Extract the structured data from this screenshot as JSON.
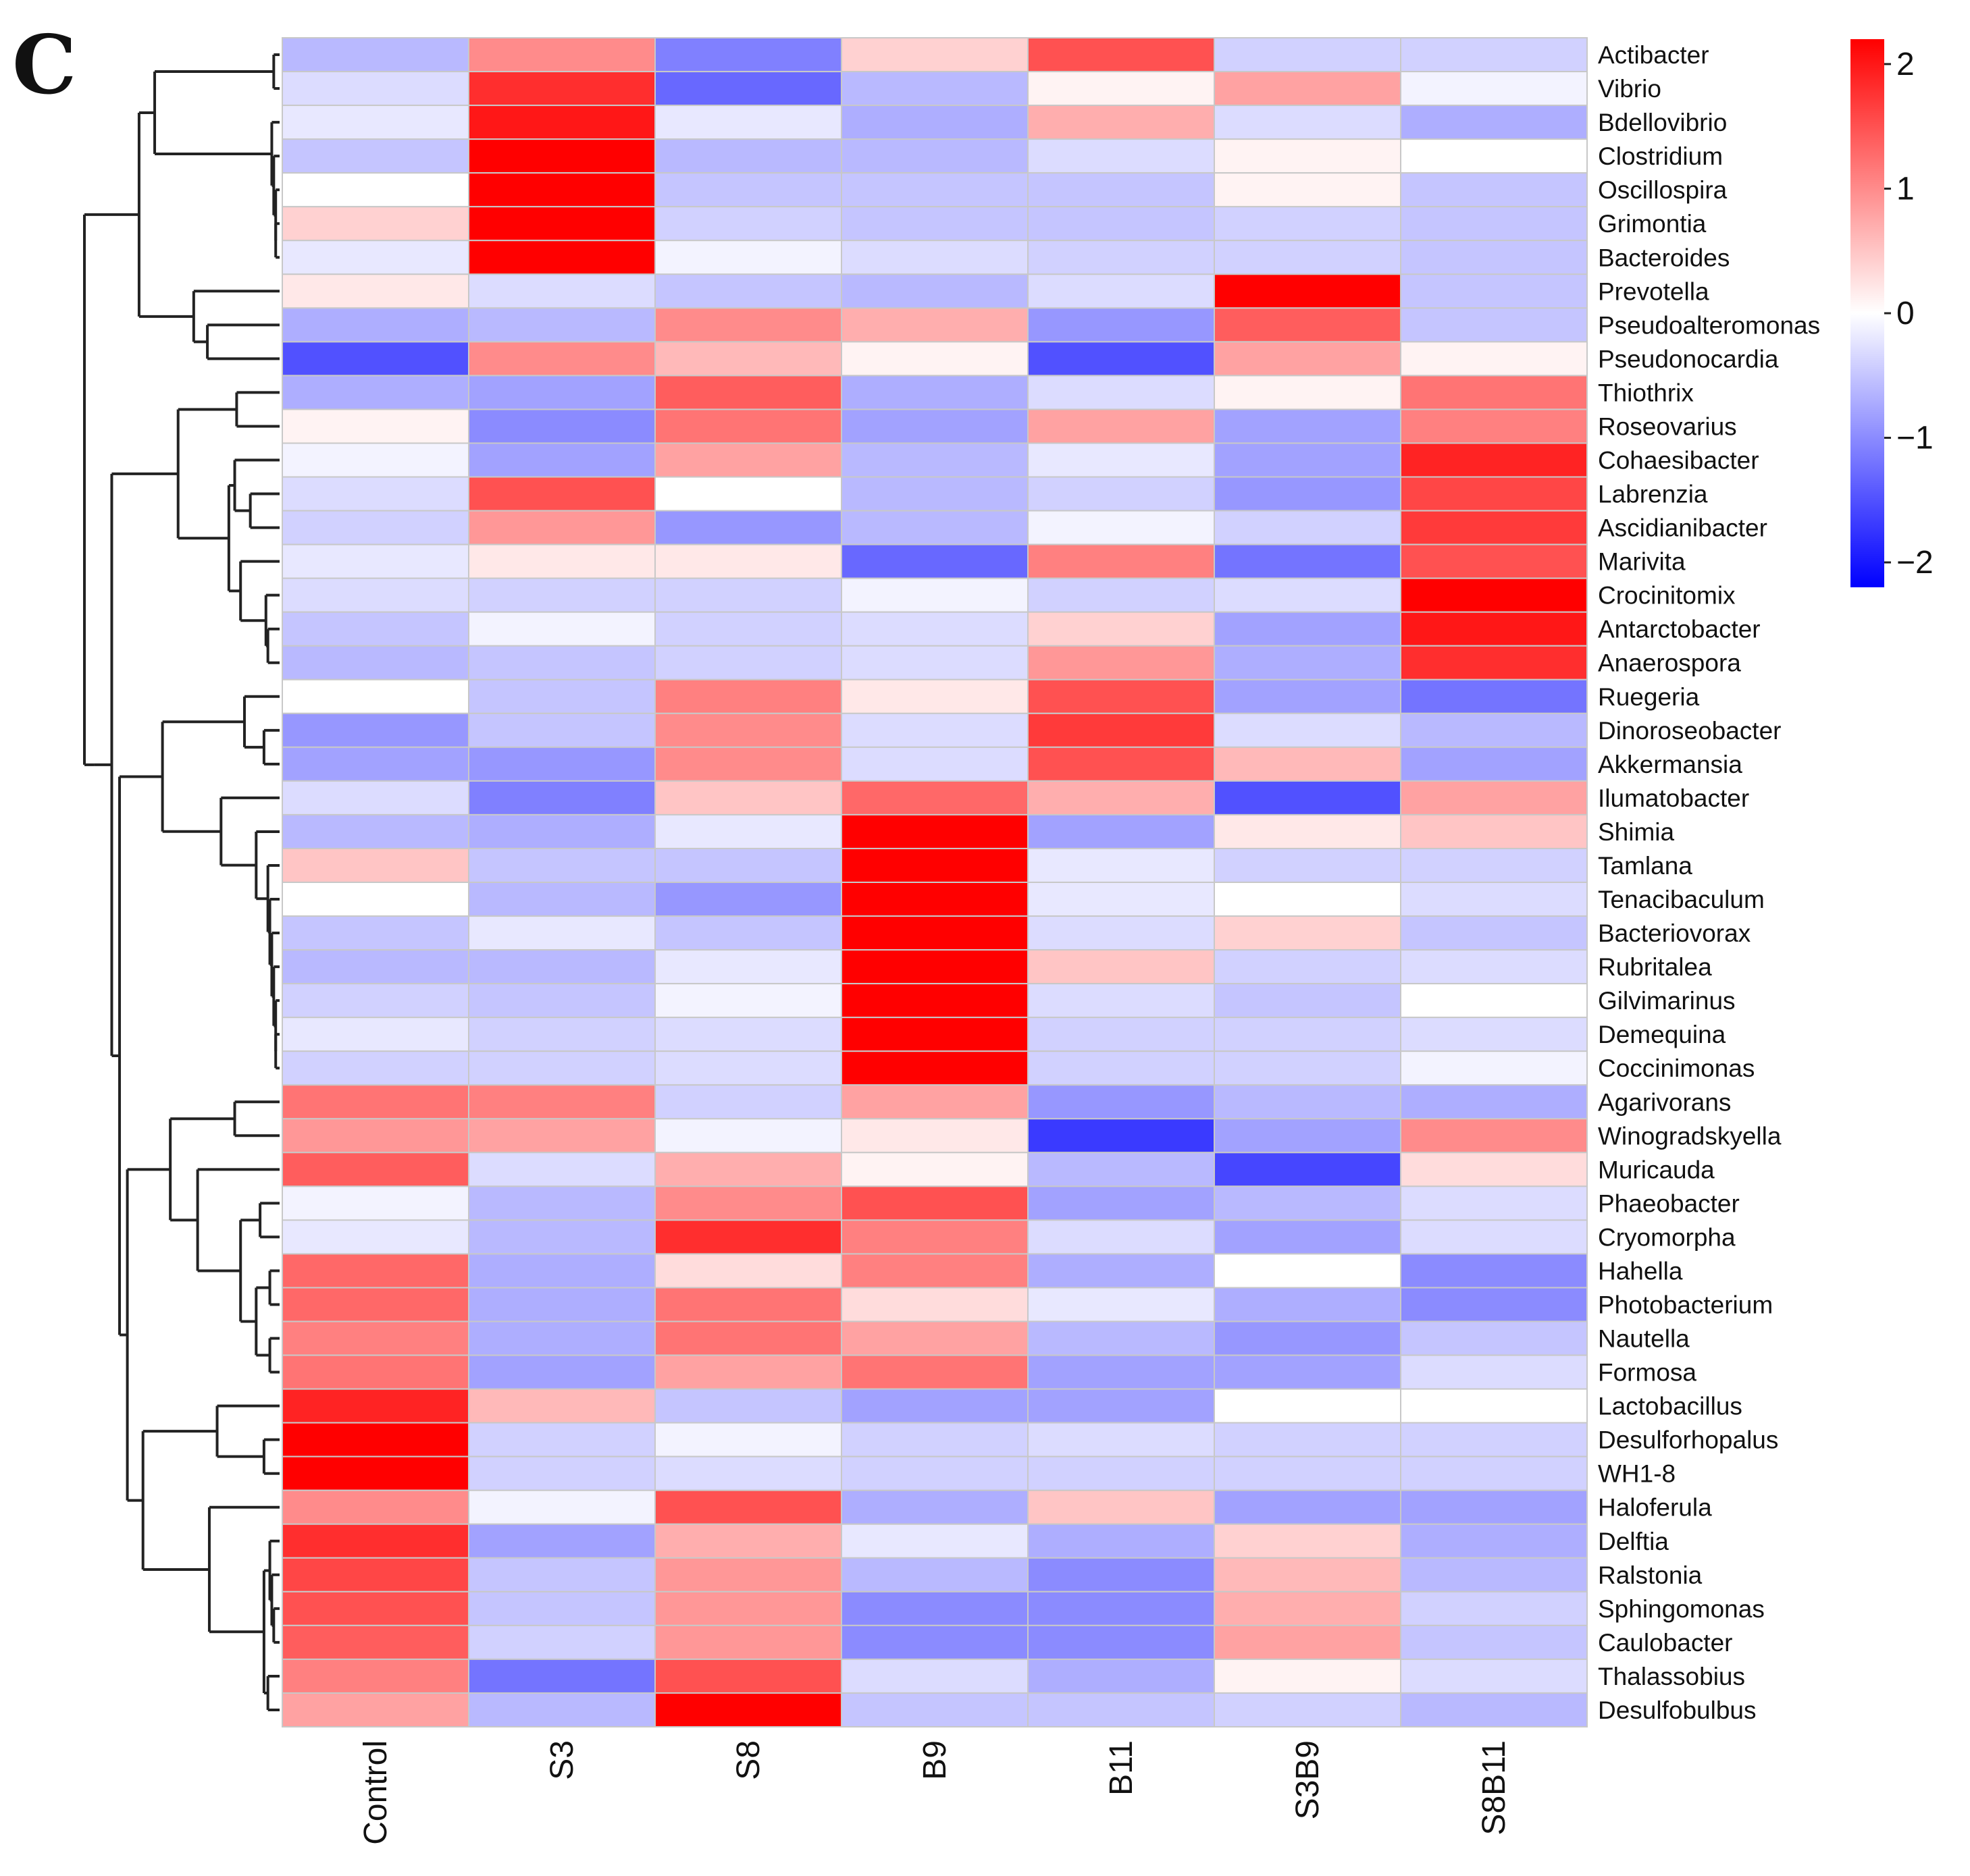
{
  "panel_label": "C",
  "chart_data": {
    "type": "heatmap",
    "title": "",
    "columns": [
      "Control",
      "S3",
      "S8",
      "B9",
      "B11",
      "S3B9",
      "S8B11"
    ],
    "rows": [
      "Actibacter",
      "Vibrio",
      "Bdellovibrio",
      "Clostridium",
      "Oscillospira",
      "Grimontia",
      "Bacteroides",
      "Prevotella",
      "Pseudoalteromonas",
      "Pseudonocardia",
      "Thiothrix",
      "Roseovarius",
      "Cohaesibacter",
      "Labrenzia",
      "Ascidianibacter",
      "Marivita",
      "Crocinitomix",
      "Antarctobacter",
      "Anaerospora",
      "Ruegeria",
      "Dinoroseobacter",
      "Akkermansia",
      "Ilumatobacter",
      "Shimia",
      "Tamlana",
      "Tenacibaculum",
      "Bacteriovorax",
      "Rubritalea",
      "Gilvimarinus",
      "Demequina",
      "Coccinimonas",
      "Agarivorans",
      "Winogradskyella",
      "Muricauda",
      "Phaeobacter",
      "Cryomorpha",
      "Hahella",
      "Photobacterium",
      "Nautella",
      "Formosa",
      "Lactobacillus",
      "Desulforhopalus",
      "WH1-8",
      "Haloferula",
      "Delftia",
      "Ralstonia",
      "Sphingomonas",
      "Caulobacter",
      "Thalassobius",
      "Desulfobulbus"
    ],
    "values": [
      [
        -0.6,
        1.0,
        -1.1,
        0.4,
        1.5,
        -0.4,
        -0.4
      ],
      [
        -0.3,
        1.8,
        -1.3,
        -0.6,
        0.1,
        0.8,
        -0.1
      ],
      [
        -0.2,
        2.0,
        -0.2,
        -0.7,
        0.7,
        -0.3,
        -0.7
      ],
      [
        -0.5,
        2.2,
        -0.6,
        -0.6,
        -0.3,
        0.1,
        0.0
      ],
      [
        0.0,
        2.2,
        -0.5,
        -0.5,
        -0.5,
        0.1,
        -0.5
      ],
      [
        0.4,
        2.2,
        -0.4,
        -0.5,
        -0.5,
        -0.4,
        -0.5
      ],
      [
        -0.2,
        2.2,
        -0.1,
        -0.3,
        -0.4,
        -0.4,
        -0.5
      ],
      [
        0.2,
        -0.3,
        -0.5,
        -0.6,
        -0.3,
        2.2,
        -0.5
      ],
      [
        -0.7,
        -0.6,
        1.0,
        0.7,
        -0.9,
        1.4,
        -0.5
      ],
      [
        -1.5,
        1.0,
        0.6,
        0.1,
        -1.5,
        0.8,
        0.1
      ],
      [
        -0.7,
        -0.8,
        1.4,
        -0.7,
        -0.3,
        0.1,
        1.2
      ],
      [
        0.1,
        -1.0,
        1.2,
        -0.8,
        0.8,
        -0.8,
        1.1
      ],
      [
        -0.1,
        -0.8,
        0.8,
        -0.6,
        -0.2,
        -0.8,
        1.9
      ],
      [
        -0.3,
        1.5,
        0.0,
        -0.6,
        -0.4,
        -0.9,
        1.6
      ],
      [
        -0.4,
        0.9,
        -0.9,
        -0.6,
        -0.1,
        -0.4,
        1.7
      ],
      [
        -0.2,
        0.2,
        0.2,
        -1.3,
        1.1,
        -1.2,
        1.5
      ],
      [
        -0.3,
        -0.4,
        -0.4,
        -0.1,
        -0.4,
        -0.3,
        2.2
      ],
      [
        -0.5,
        -0.1,
        -0.4,
        -0.3,
        0.4,
        -0.8,
        2.0
      ],
      [
        -0.6,
        -0.5,
        -0.4,
        -0.3,
        0.9,
        -0.7,
        1.8
      ],
      [
        0.0,
        -0.5,
        1.1,
        0.2,
        1.5,
        -0.8,
        -1.2
      ],
      [
        -0.9,
        -0.5,
        1.0,
        -0.3,
        1.7,
        -0.3,
        -0.6
      ],
      [
        -0.8,
        -0.9,
        1.0,
        -0.3,
        1.5,
        0.6,
        -0.8
      ],
      [
        -0.3,
        -1.1,
        0.5,
        1.3,
        0.7,
        -1.5,
        0.8
      ],
      [
        -0.6,
        -0.7,
        -0.2,
        2.2,
        -0.8,
        0.2,
        0.5
      ],
      [
        0.5,
        -0.5,
        -0.5,
        2.2,
        -0.2,
        -0.4,
        -0.4
      ],
      [
        0.0,
        -0.6,
        -0.9,
        2.2,
        -0.2,
        0.0,
        -0.3
      ],
      [
        -0.5,
        -0.2,
        -0.5,
        2.2,
        -0.3,
        0.4,
        -0.5
      ],
      [
        -0.6,
        -0.6,
        -0.2,
        2.2,
        0.5,
        -0.4,
        -0.3
      ],
      [
        -0.4,
        -0.5,
        -0.1,
        2.2,
        -0.3,
        -0.5,
        0.0
      ],
      [
        -0.2,
        -0.4,
        -0.3,
        2.2,
        -0.4,
        -0.4,
        -0.3
      ],
      [
        -0.4,
        -0.4,
        -0.3,
        2.2,
        -0.4,
        -0.4,
        -0.1
      ],
      [
        1.2,
        1.1,
        -0.4,
        0.8,
        -0.9,
        -0.6,
        -0.7
      ],
      [
        0.9,
        0.8,
        -0.1,
        0.2,
        -1.7,
        -0.8,
        1.0
      ],
      [
        1.4,
        -0.3,
        0.7,
        0.1,
        -0.6,
        -1.6,
        0.3
      ],
      [
        -0.1,
        -0.6,
        1.0,
        1.5,
        -0.8,
        -0.6,
        -0.3
      ],
      [
        -0.2,
        -0.6,
        1.8,
        1.1,
        -0.3,
        -0.8,
        -0.3
      ],
      [
        1.3,
        -0.7,
        0.3,
        1.1,
        -0.7,
        0.0,
        -1.0
      ],
      [
        1.3,
        -0.7,
        1.2,
        0.3,
        -0.2,
        -0.7,
        -1.0
      ],
      [
        1.1,
        -0.7,
        1.2,
        0.8,
        -0.6,
        -0.9,
        -0.5
      ],
      [
        1.2,
        -0.8,
        0.8,
        1.2,
        -0.8,
        -0.8,
        -0.3
      ],
      [
        1.9,
        0.6,
        -0.5,
        -0.8,
        -0.8,
        0.0,
        0.0
      ],
      [
        2.2,
        -0.4,
        -0.1,
        -0.4,
        -0.3,
        -0.4,
        -0.4
      ],
      [
        2.2,
        -0.4,
        -0.3,
        -0.4,
        -0.4,
        -0.4,
        -0.4
      ],
      [
        1.0,
        -0.1,
        1.5,
        -0.7,
        0.5,
        -0.8,
        -0.8
      ],
      [
        1.8,
        -0.8,
        0.7,
        -0.2,
        -0.7,
        0.4,
        -0.7
      ],
      [
        1.6,
        -0.5,
        0.9,
        -0.6,
        -1.0,
        0.6,
        -0.6
      ],
      [
        1.5,
        -0.5,
        0.9,
        -1.0,
        -1.0,
        0.7,
        -0.4
      ],
      [
        1.4,
        -0.4,
        0.9,
        -1.0,
        -1.0,
        0.8,
        -0.5
      ],
      [
        1.1,
        -1.2,
        1.5,
        -0.3,
        -0.7,
        0.1,
        -0.3
      ],
      [
        0.8,
        -0.6,
        2.2,
        -0.5,
        -0.5,
        -0.4,
        -0.6
      ]
    ],
    "color_scale": {
      "min": -2.2,
      "max": 2.2,
      "low_color": "#0000ff",
      "mid_color": "#ffffff",
      "high_color": "#ff0000",
      "ticks": [
        2,
        1,
        0,
        -1,
        -2
      ],
      "tick_labels": [
        "2",
        "1",
        "0",
        "−1",
        "−2"
      ]
    },
    "legend_position": "top-right",
    "dendrogram": "rows"
  },
  "colors": {
    "cell_border": "#c8c8c8",
    "dendrogram": "#222222"
  }
}
